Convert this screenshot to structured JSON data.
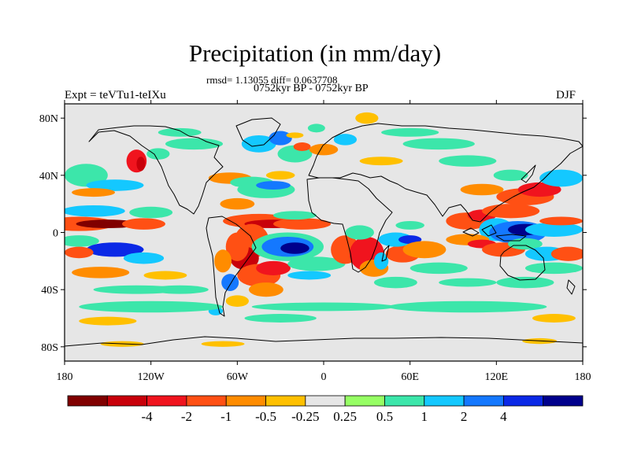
{
  "title": "Precipitation (in mm/day)",
  "stats": "rmsd= 1.13055 diff= 0.0637708",
  "period": "0752kyr BP - 0752kyr BP",
  "experiment": "Expt = teVTu1-teIXu",
  "season": "DJF",
  "map": {
    "projection": "cylindrical-equidistant",
    "lon_range": [
      -180,
      180
    ],
    "lat_range": [
      -90,
      90
    ],
    "lat_ticks": [
      {
        "value": 80,
        "label": "80N"
      },
      {
        "value": 40,
        "label": "40N"
      },
      {
        "value": 0,
        "label": "0"
      },
      {
        "value": -40,
        "label": "40S"
      },
      {
        "value": -80,
        "label": "80S"
      }
    ],
    "lon_ticks": [
      {
        "value": -180,
        "label": "180"
      },
      {
        "value": -120,
        "label": "120W"
      },
      {
        "value": -60,
        "label": "60W"
      },
      {
        "value": 0,
        "label": "0"
      },
      {
        "value": 60,
        "label": "60E"
      },
      {
        "value": 120,
        "label": "120E"
      },
      {
        "value": 180,
        "label": "180"
      }
    ],
    "background_color": "#e6e6e6"
  },
  "colorbar": {
    "colors": [
      "#800000",
      "#c8000a",
      "#f0141e",
      "#ff5014",
      "#ff8c00",
      "#ffc000",
      "#e6e6e6",
      "#96ff64",
      "#3ce6aa",
      "#14c8ff",
      "#1478ff",
      "#0a28e6",
      "#00008c"
    ],
    "labels": [
      "-4",
      "-2",
      "-1",
      "-0.5",
      "-0.25",
      "0.25",
      "0.5",
      "1",
      "2",
      "4"
    ]
  },
  "blobs": [
    {
      "lon": -170,
      "lat": 6,
      "rx": 25,
      "ry": 5,
      "level": -3
    },
    {
      "lon": -150,
      "lat": 6,
      "rx": 22,
      "ry": 3,
      "level": -6
    },
    {
      "lon": -125,
      "lat": 6,
      "rx": 15,
      "ry": 4,
      "level": -3
    },
    {
      "lon": -160,
      "lat": 15,
      "rx": 22,
      "ry": 4,
      "level": 3
    },
    {
      "lon": -120,
      "lat": 14,
      "rx": 15,
      "ry": 4,
      "level": 2
    },
    {
      "lon": -170,
      "lat": -6,
      "rx": 14,
      "ry": 4,
      "level": 2
    },
    {
      "lon": -145,
      "lat": -12,
      "rx": 20,
      "ry": 5,
      "level": 5
    },
    {
      "lon": -125,
      "lat": -18,
      "rx": 14,
      "ry": 4,
      "level": 3
    },
    {
      "lon": -170,
      "lat": -14,
      "rx": 10,
      "ry": 4,
      "level": -3
    },
    {
      "lon": -155,
      "lat": -28,
      "rx": 20,
      "ry": 4,
      "level": -2
    },
    {
      "lon": -110,
      "lat": -30,
      "rx": 15,
      "ry": 3,
      "level": -1
    },
    {
      "lon": -165,
      "lat": 40,
      "rx": 15,
      "ry": 8,
      "level": 2
    },
    {
      "lon": -145,
      "lat": 33,
      "rx": 20,
      "ry": 4,
      "level": 3
    },
    {
      "lon": -160,
      "lat": 28,
      "rx": 15,
      "ry": 3,
      "level": -2
    },
    {
      "lon": -130,
      "lat": 50,
      "rx": 7,
      "ry": 8,
      "level": -4
    },
    {
      "lon": -127,
      "lat": 48,
      "rx": 3,
      "ry": 5,
      "level": -5
    },
    {
      "lon": -115,
      "lat": 55,
      "rx": 8,
      "ry": 4,
      "level": 2
    },
    {
      "lon": -65,
      "lat": 38,
      "rx": 15,
      "ry": 4,
      "level": -2
    },
    {
      "lon": -50,
      "lat": 35,
      "rx": 15,
      "ry": 4,
      "level": 2
    },
    {
      "lon": -40,
      "lat": 30,
      "rx": 20,
      "ry": 6,
      "level": 2
    },
    {
      "lon": -35,
      "lat": 33,
      "rx": 12,
      "ry": 3,
      "level": 4
    },
    {
      "lon": -30,
      "lat": 40,
      "rx": 10,
      "ry": 3,
      "level": -1
    },
    {
      "lon": -45,
      "lat": 62,
      "rx": 12,
      "ry": 6,
      "level": 3
    },
    {
      "lon": -30,
      "lat": 66,
      "rx": 8,
      "ry": 5,
      "level": 4
    },
    {
      "lon": -20,
      "lat": 55,
      "rx": 12,
      "ry": 6,
      "level": 2
    },
    {
      "lon": -15,
      "lat": 60,
      "rx": 6,
      "ry": 3,
      "level": -3
    },
    {
      "lon": 0,
      "lat": 58,
      "rx": 10,
      "ry": 4,
      "level": -2
    },
    {
      "lon": 15,
      "lat": 65,
      "rx": 8,
      "ry": 4,
      "level": 3
    },
    {
      "lon": -20,
      "lat": 68,
      "rx": 6,
      "ry": 2,
      "level": -1
    },
    {
      "lon": 30,
      "lat": 80,
      "rx": 8,
      "ry": 4,
      "level": -1
    },
    {
      "lon": -5,
      "lat": 73,
      "rx": 6,
      "ry": 3,
      "level": 2
    },
    {
      "lon": -60,
      "lat": 20,
      "rx": 12,
      "ry": 4,
      "level": -2
    },
    {
      "lon": -45,
      "lat": 8,
      "rx": 25,
      "ry": 5,
      "level": -3
    },
    {
      "lon": -35,
      "lat": 6,
      "rx": 20,
      "ry": 3,
      "level": -5
    },
    {
      "lon": -15,
      "lat": 6,
      "rx": 20,
      "ry": 4,
      "level": -3
    },
    {
      "lon": -20,
      "lat": 12,
      "rx": 15,
      "ry": 3,
      "level": 2
    },
    {
      "lon": -50,
      "lat": -6,
      "rx": 12,
      "ry": 12,
      "level": -3
    },
    {
      "lon": -55,
      "lat": -18,
      "rx": 10,
      "ry": 8,
      "level": -5
    },
    {
      "lon": -60,
      "lat": -10,
      "rx": 8,
      "ry": 10,
      "level": -3
    },
    {
      "lon": -70,
      "lat": -20,
      "rx": 6,
      "ry": 8,
      "level": -2
    },
    {
      "lon": -65,
      "lat": -35,
      "rx": 6,
      "ry": 6,
      "level": 4
    },
    {
      "lon": -45,
      "lat": -30,
      "rx": 15,
      "ry": 8,
      "level": -3
    },
    {
      "lon": -35,
      "lat": -25,
      "rx": 12,
      "ry": 5,
      "level": -4
    },
    {
      "lon": -40,
      "lat": -40,
      "rx": 12,
      "ry": 5,
      "level": -2
    },
    {
      "lon": -60,
      "lat": -48,
      "rx": 8,
      "ry": 4,
      "level": -1
    },
    {
      "lon": -75,
      "lat": -55,
      "rx": 5,
      "ry": 3,
      "level": 3
    },
    {
      "lon": -25,
      "lat": -10,
      "rx": 25,
      "ry": 10,
      "level": 2
    },
    {
      "lon": -25,
      "lat": -10,
      "rx": 18,
      "ry": 7,
      "level": 4
    },
    {
      "lon": -20,
      "lat": -11,
      "rx": 10,
      "ry": 4,
      "level": 6
    },
    {
      "lon": -5,
      "lat": -22,
      "rx": 20,
      "ry": 5,
      "level": 2
    },
    {
      "lon": -10,
      "lat": -30,
      "rx": 15,
      "ry": 3,
      "level": 3
    },
    {
      "lon": 15,
      "lat": -12,
      "rx": 10,
      "ry": 10,
      "level": -3
    },
    {
      "lon": 30,
      "lat": -15,
      "rx": 12,
      "ry": 12,
      "level": -4
    },
    {
      "lon": 35,
      "lat": -25,
      "rx": 10,
      "ry": 6,
      "level": -2
    },
    {
      "lon": 25,
      "lat": 0,
      "rx": 10,
      "ry": 5,
      "level": 2
    },
    {
      "lon": 40,
      "lat": -20,
      "rx": 5,
      "ry": 6,
      "level": 3
    },
    {
      "lon": 55,
      "lat": -15,
      "rx": 12,
      "ry": 6,
      "level": -3
    },
    {
      "lon": 50,
      "lat": -5,
      "rx": 12,
      "ry": 5,
      "level": 3
    },
    {
      "lon": 60,
      "lat": -5,
      "rx": 8,
      "ry": 3,
      "level": 5
    },
    {
      "lon": 70,
      "lat": -12,
      "rx": 15,
      "ry": 6,
      "level": -2
    },
    {
      "lon": 80,
      "lat": -25,
      "rx": 20,
      "ry": 4,
      "level": 2
    },
    {
      "lon": 50,
      "lat": -35,
      "rx": 15,
      "ry": 4,
      "level": 2
    },
    {
      "lon": 60,
      "lat": 5,
      "rx": 10,
      "ry": 3,
      "level": 2
    },
    {
      "lon": 100,
      "lat": 8,
      "rx": 15,
      "ry": 6,
      "level": -3
    },
    {
      "lon": 110,
      "lat": 12,
      "rx": 10,
      "ry": 4,
      "level": -4
    },
    {
      "lon": 120,
      "lat": 2,
      "rx": 12,
      "ry": 8,
      "level": 3
    },
    {
      "lon": 135,
      "lat": 0,
      "rx": 20,
      "ry": 8,
      "level": 4
    },
    {
      "lon": 140,
      "lat": 2,
      "rx": 12,
      "ry": 4,
      "level": 6
    },
    {
      "lon": 160,
      "lat": 2,
      "rx": 20,
      "ry": 5,
      "level": 3
    },
    {
      "lon": 165,
      "lat": 8,
      "rx": 15,
      "ry": 3,
      "level": -3
    },
    {
      "lon": 130,
      "lat": 15,
      "rx": 20,
      "ry": 5,
      "level": -3
    },
    {
      "lon": 140,
      "lat": 25,
      "rx": 20,
      "ry": 6,
      "level": -3
    },
    {
      "lon": 150,
      "lat": 30,
      "rx": 15,
      "ry": 5,
      "level": -4
    },
    {
      "lon": 165,
      "lat": 38,
      "rx": 15,
      "ry": 6,
      "level": 3
    },
    {
      "lon": 130,
      "lat": 40,
      "rx": 12,
      "ry": 4,
      "level": 2
    },
    {
      "lon": 110,
      "lat": 30,
      "rx": 15,
      "ry": 4,
      "level": -2
    },
    {
      "lon": 100,
      "lat": -5,
      "rx": 15,
      "ry": 4,
      "level": -2
    },
    {
      "lon": 110,
      "lat": -8,
      "rx": 10,
      "ry": 3,
      "level": -4
    },
    {
      "lon": 125,
      "lat": -12,
      "rx": 15,
      "ry": 5,
      "level": -3
    },
    {
      "lon": 140,
      "lat": -8,
      "rx": 12,
      "ry": 4,
      "level": 2
    },
    {
      "lon": 155,
      "lat": -15,
      "rx": 15,
      "ry": 5,
      "level": 3
    },
    {
      "lon": 170,
      "lat": -15,
      "rx": 12,
      "ry": 5,
      "level": -3
    },
    {
      "lon": 160,
      "lat": -25,
      "rx": 20,
      "ry": 4,
      "level": 2
    },
    {
      "lon": 140,
      "lat": -35,
      "rx": 20,
      "ry": 4,
      "level": 2
    },
    {
      "lon": 100,
      "lat": -35,
      "rx": 20,
      "ry": 3,
      "level": 2
    },
    {
      "lon": -130,
      "lat": -40,
      "rx": 30,
      "ry": 3,
      "level": 2
    },
    {
      "lon": -100,
      "lat": -40,
      "rx": 20,
      "ry": 3,
      "level": 2
    },
    {
      "lon": -120,
      "lat": -52,
      "rx": 50,
      "ry": 4,
      "level": 2
    },
    {
      "lon": 0,
      "lat": -52,
      "rx": 50,
      "ry": 3,
      "level": 2
    },
    {
      "lon": 100,
      "lat": -52,
      "rx": 55,
      "ry": 4,
      "level": 2
    },
    {
      "lon": -150,
      "lat": -62,
      "rx": 20,
      "ry": 3,
      "level": -1
    },
    {
      "lon": -30,
      "lat": -60,
      "rx": 25,
      "ry": 3,
      "level": 2
    },
    {
      "lon": 160,
      "lat": -60,
      "rx": 15,
      "ry": 3,
      "level": -1
    },
    {
      "lon": -140,
      "lat": -78,
      "rx": 15,
      "ry": 2,
      "level": -1
    },
    {
      "lon": -70,
      "lat": -78,
      "rx": 15,
      "ry": 2,
      "level": -1
    },
    {
      "lon": 150,
      "lat": -76,
      "rx": 12,
      "ry": 2,
      "level": -1
    },
    {
      "lon": -90,
      "lat": 62,
      "rx": 20,
      "ry": 4,
      "level": 2
    },
    {
      "lon": -100,
      "lat": 70,
      "rx": 15,
      "ry": 3,
      "level": 2
    },
    {
      "lon": 80,
      "lat": 62,
      "rx": 25,
      "ry": 4,
      "level": 2
    },
    {
      "lon": 60,
      "lat": 70,
      "rx": 20,
      "ry": 3,
      "level": 2
    },
    {
      "lon": 100,
      "lat": 50,
      "rx": 20,
      "ry": 4,
      "level": 2
    },
    {
      "lon": 40,
      "lat": 50,
      "rx": 15,
      "ry": 3,
      "level": -1
    }
  ]
}
